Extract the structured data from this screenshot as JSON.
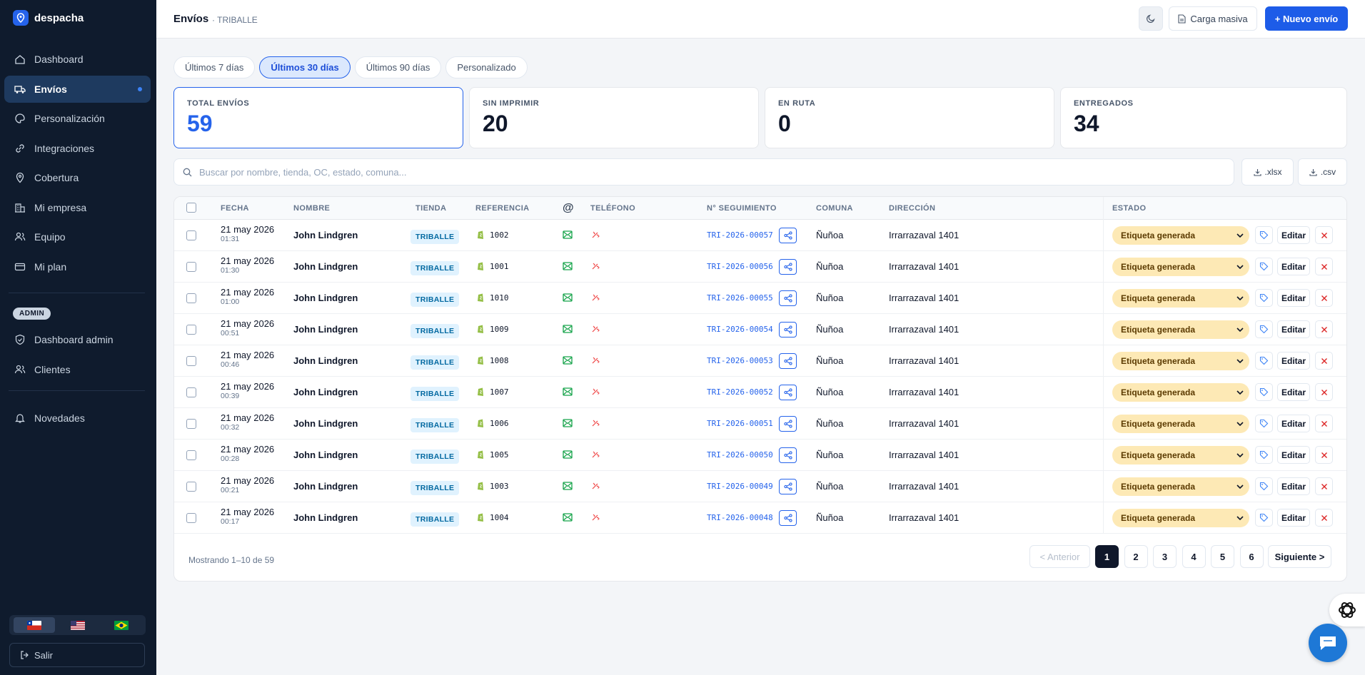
{
  "sidebar": {
    "brand": "despacha",
    "nav": [
      {
        "label": "Dashboard",
        "icon": "home-icon"
      },
      {
        "label": "Envíos",
        "icon": "truck-icon",
        "active": true
      },
      {
        "label": "Personalización",
        "icon": "palette-icon"
      },
      {
        "label": "Integraciones",
        "icon": "link-icon"
      },
      {
        "label": "Cobertura",
        "icon": "map-pin-icon"
      },
      {
        "label": "Mi empresa",
        "icon": "building-icon"
      },
      {
        "label": "Equipo",
        "icon": "users-icon"
      },
      {
        "label": "Mi plan",
        "icon": "card-icon"
      }
    ],
    "admin_badge": "ADMIN",
    "admin_nav": [
      {
        "label": "Dashboard admin",
        "icon": "shield-icon"
      },
      {
        "label": "Clientes",
        "icon": "users-icon"
      }
    ],
    "extra_nav": [
      {
        "label": "Novedades",
        "icon": "bell-icon"
      }
    ],
    "languages": [
      "cl-flag-icon",
      "us-flag-icon",
      "br-flag-icon"
    ],
    "logout": "Salir"
  },
  "header": {
    "title": "Envíos",
    "subtitle": "· TRIBALLE",
    "bulk_upload": "Carga masiva",
    "new_shipment": "+ Nuevo envío"
  },
  "ranges": [
    "Últimos 7 días",
    "Últimos 30 días",
    "Últimos 90 días",
    "Personalizado"
  ],
  "stats": [
    {
      "label": "TOTAL ENVÍOS",
      "value": "59"
    },
    {
      "label": "SIN IMPRIMIR",
      "value": "20"
    },
    {
      "label": "EN RUTA",
      "value": "0"
    },
    {
      "label": "ENTREGADOS",
      "value": "34"
    }
  ],
  "search": {
    "placeholder": "Buscar por nombre, tienda, OC, estado, comuna..."
  },
  "exports": {
    "xlsx": ".xlsx",
    "csv": ".csv"
  },
  "table": {
    "headers": {
      "fecha": "FECHA",
      "nombre": "NOMBRE",
      "tienda": "TIENDA",
      "referencia": "REFERENCIA",
      "email": "@",
      "telefono": "TELÉFONO",
      "seguimiento": "N° SEGUIMIENTO",
      "comuna": "COMUNA",
      "direccion": "DIRECCIÓN",
      "estado": "ESTADO"
    },
    "edit_label": "Editar",
    "rows": [
      {
        "date": "21 may 2026",
        "time": "01:31",
        "name": "John Lindgren",
        "store": "TRIBALLE",
        "ref": "1002",
        "tracking": "TRI-2026-00057",
        "comuna": "Ñuñoa",
        "address": "Irrarrazaval 1401",
        "status": "Etiqueta generada"
      },
      {
        "date": "21 may 2026",
        "time": "01:30",
        "name": "John Lindgren",
        "store": "TRIBALLE",
        "ref": "1001",
        "tracking": "TRI-2026-00056",
        "comuna": "Ñuñoa",
        "address": "Irrarrazaval 1401",
        "status": "Etiqueta generada"
      },
      {
        "date": "21 may 2026",
        "time": "01:00",
        "name": "John Lindgren",
        "store": "TRIBALLE",
        "ref": "1010",
        "tracking": "TRI-2026-00055",
        "comuna": "Ñuñoa",
        "address": "Irrarrazaval 1401",
        "status": "Etiqueta generada"
      },
      {
        "date": "21 may 2026",
        "time": "00:51",
        "name": "John Lindgren",
        "store": "TRIBALLE",
        "ref": "1009",
        "tracking": "TRI-2026-00054",
        "comuna": "Ñuñoa",
        "address": "Irrarrazaval 1401",
        "status": "Etiqueta generada"
      },
      {
        "date": "21 may 2026",
        "time": "00:46",
        "name": "John Lindgren",
        "store": "TRIBALLE",
        "ref": "1008",
        "tracking": "TRI-2026-00053",
        "comuna": "Ñuñoa",
        "address": "Irrarrazaval 1401",
        "status": "Etiqueta generada"
      },
      {
        "date": "21 may 2026",
        "time": "00:39",
        "name": "John Lindgren",
        "store": "TRIBALLE",
        "ref": "1007",
        "tracking": "TRI-2026-00052",
        "comuna": "Ñuñoa",
        "address": "Irrarrazaval 1401",
        "status": "Etiqueta generada"
      },
      {
        "date": "21 may 2026",
        "time": "00:32",
        "name": "John Lindgren",
        "store": "TRIBALLE",
        "ref": "1006",
        "tracking": "TRI-2026-00051",
        "comuna": "Ñuñoa",
        "address": "Irrarrazaval 1401",
        "status": "Etiqueta generada"
      },
      {
        "date": "21 may 2026",
        "time": "00:28",
        "name": "John Lindgren",
        "store": "TRIBALLE",
        "ref": "1005",
        "tracking": "TRI-2026-00050",
        "comuna": "Ñuñoa",
        "address": "Irrarrazaval 1401",
        "status": "Etiqueta generada"
      },
      {
        "date": "21 may 2026",
        "time": "00:21",
        "name": "John Lindgren",
        "store": "TRIBALLE",
        "ref": "1003",
        "tracking": "TRI-2026-00049",
        "comuna": "Ñuñoa",
        "address": "Irrarrazaval 1401",
        "status": "Etiqueta generada"
      },
      {
        "date": "21 may 2026",
        "time": "00:17",
        "name": "John Lindgren",
        "store": "TRIBALLE",
        "ref": "1004",
        "tracking": "TRI-2026-00048",
        "comuna": "Ñuñoa",
        "address": "Irrarrazaval 1401",
        "status": "Etiqueta generada"
      }
    ]
  },
  "pagination": {
    "summary": "Mostrando 1–10 de 59",
    "prev": "< Anterior",
    "pages": [
      "1",
      "2",
      "3",
      "4",
      "5",
      "6"
    ],
    "next": "Siguiente >"
  },
  "colors": {
    "accent": "#1d5ce8",
    "sidebar": "#0f1b2d",
    "status_bg": "#fde9b5"
  }
}
